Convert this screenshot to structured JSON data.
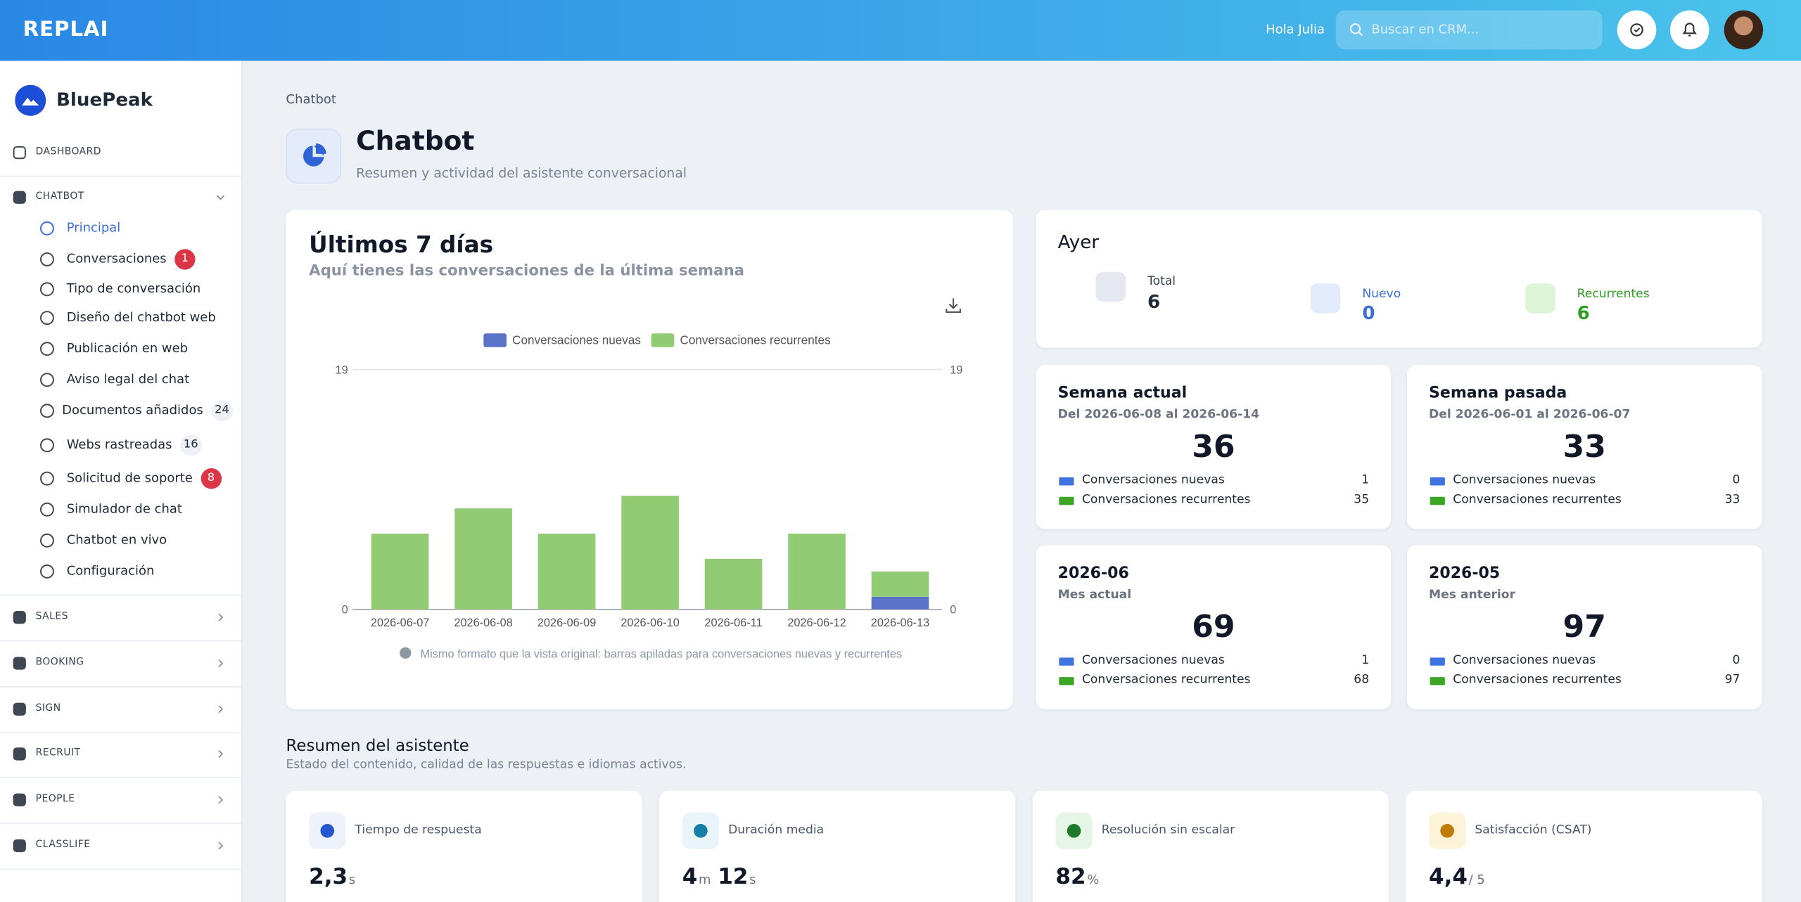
{
  "header": {
    "logo": "REPLAI",
    "greeting": "Hola Julia",
    "search_placeholder": "Buscar en CRM..."
  },
  "sidebar": {
    "brand": "BluePeak",
    "sections": [
      {
        "label": "DASHBOARD"
      },
      {
        "label": "CHATBOT",
        "items": [
          {
            "label": "Principal"
          },
          {
            "label": "Conversaciones",
            "badge": 1
          },
          {
            "label": "Tipo de conversación"
          },
          {
            "label": "Diseño del chatbot web"
          },
          {
            "label": "Publicación en web"
          },
          {
            "label": "Aviso legal del chat"
          },
          {
            "label": "Documentos añadidos",
            "badge": 24
          },
          {
            "label": "Webs rastreadas",
            "badge": 16
          },
          {
            "label": "Solicitud de soporte",
            "badge": 8
          },
          {
            "label": "Simulador de chat"
          },
          {
            "label": "Chatbot en vivo"
          },
          {
            "label": "Configuración"
          }
        ]
      },
      {
        "label": "SALES"
      },
      {
        "label": "BOOKING"
      },
      {
        "label": "SIGN"
      },
      {
        "label": "RECRUIT"
      },
      {
        "label": "PEOPLE"
      },
      {
        "label": "CLASSLIFE"
      }
    ]
  },
  "breadcrumb": "Chatbot",
  "page_title": "Chatbot",
  "page_subtitle": "Resumen y actividad del asistente conversacional",
  "chart_data": {
    "type": "bar",
    "stacked": true,
    "title": "Últimos 7 días",
    "subtitle": "Aquí tienes las conversaciones de la última semana",
    "categories": [
      "2026-06-07",
      "2026-06-08",
      "2026-06-09",
      "2026-06-10",
      "2026-06-11",
      "2026-06-12",
      "2026-06-13"
    ],
    "series": [
      {
        "name": "Conversaciones nuevas",
        "color": "#5b73c7",
        "values": [
          0,
          0,
          0,
          0,
          0,
          0,
          1
        ]
      },
      {
        "name": "Conversaciones recurrentes",
        "color": "#91cc75",
        "values": [
          6,
          8,
          6,
          9,
          4,
          6,
          2
        ]
      }
    ],
    "ylim": [
      0,
      19
    ],
    "yticks": [
      0,
      19
    ],
    "legend": "top",
    "note": "Mismo formato que la vista original: barras apiladas para conversaciones nuevas y recurrentes"
  },
  "yesterday": {
    "title": "Ayer",
    "items": [
      {
        "label": "Total",
        "value": 6
      },
      {
        "label": "Nuevo",
        "value": 0
      },
      {
        "label": "Recurrentes",
        "value": 6
      }
    ]
  },
  "periods": [
    {
      "title": "Semana actual",
      "subtitle": "Del 2026-06-08 al 2026-06-14",
      "total": 36,
      "rows": [
        {
          "label": "Conversaciones nuevas",
          "value": 1
        },
        {
          "label": "Conversaciones recurrentes",
          "value": 35
        }
      ]
    },
    {
      "title": "Semana pasada",
      "subtitle": "Del 2026-06-01 al 2026-06-07",
      "total": 33,
      "rows": [
        {
          "label": "Conversaciones nuevas",
          "value": 0
        },
        {
          "label": "Conversaciones recurrentes",
          "value": 33
        }
      ]
    },
    {
      "title": "2026-06",
      "subtitle": "Mes actual",
      "total": 69,
      "rows": [
        {
          "label": "Conversaciones nuevas",
          "value": 1
        },
        {
          "label": "Conversaciones recurrentes",
          "value": 68
        }
      ]
    },
    {
      "title": "2026-05",
      "subtitle": "Mes anterior",
      "total": 97,
      "rows": [
        {
          "label": "Conversaciones nuevas",
          "value": 0
        },
        {
          "label": "Conversaciones recurrentes",
          "value": 97
        }
      ]
    }
  ],
  "summary": {
    "title": "Resumen del asistente",
    "subtitle": "Estado del contenido, calidad de las respuestas e idiomas activos.",
    "kpis": [
      {
        "label": "Tiempo de respuesta",
        "value": "2,3",
        "unit": "s"
      },
      {
        "label": "Duración media",
        "value": "4",
        "unit": "m",
        "value2": "12",
        "unit2": "s"
      },
      {
        "label": "Resolución sin escalar",
        "value": "82",
        "unit": "%"
      },
      {
        "label": "Satisfacción (CSAT)",
        "value": "4,4",
        "unit": "/ 5"
      }
    ]
  }
}
